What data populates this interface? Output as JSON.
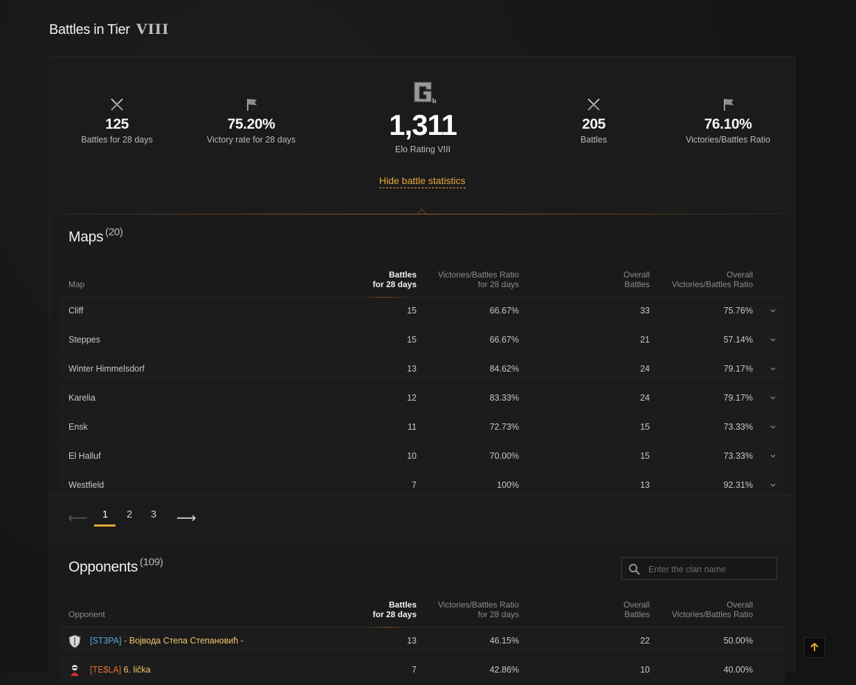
{
  "page": {
    "title": "Battles in Tier",
    "tier": "VIII"
  },
  "stats": {
    "battles28": {
      "value": "125",
      "label": "Battles for 28 days"
    },
    "victory28": {
      "value": "75.20%",
      "label": "Victory rate for 28 days"
    },
    "elo": {
      "value": "1,311",
      "label": "Elo Rating VIII"
    },
    "battles": {
      "value": "205",
      "label": "Battles"
    },
    "ratio": {
      "value": "76.10%",
      "label": "Victories/Battles Ratio"
    },
    "hide_link": "Hide battle statistics"
  },
  "maps": {
    "title": "Maps",
    "count": "(20)",
    "headers": {
      "name": "Map",
      "battles28_l1": "Battles",
      "battles28_l2": "for 28 days",
      "ratio28_l1": "Victories/Battles Ratio",
      "ratio28_l2": "for 28 days",
      "overall_l1": "Overall",
      "overall_l2": "Battles",
      "overallratio_l1": "Overall",
      "overallratio_l2": "Victories/Battles Ratio"
    },
    "rows": [
      {
        "name": "Cliff",
        "battles28": "15",
        "ratio28": "66.67%",
        "battles": "33",
        "ratio": "75.76%"
      },
      {
        "name": "Steppes",
        "battles28": "15",
        "ratio28": "66.67%",
        "battles": "21",
        "ratio": "57.14%"
      },
      {
        "name": "Winter Himmelsdorf",
        "battles28": "13",
        "ratio28": "84.62%",
        "battles": "24",
        "ratio": "79.17%"
      },
      {
        "name": "Karelia",
        "battles28": "12",
        "ratio28": "83.33%",
        "battles": "24",
        "ratio": "79.17%"
      },
      {
        "name": "Ensk",
        "battles28": "11",
        "ratio28": "72.73%",
        "battles": "15",
        "ratio": "73.33%"
      },
      {
        "name": "El Halluf",
        "battles28": "10",
        "ratio28": "70.00%",
        "battles": "15",
        "ratio": "73.33%"
      },
      {
        "name": "Westfield",
        "battles28": "7",
        "ratio28": "100%",
        "battles": "13",
        "ratio": "92.31%"
      }
    ]
  },
  "pager": {
    "prev": "⟵",
    "next": "⟶",
    "pages": [
      "1",
      "2",
      "3"
    ],
    "active": "1"
  },
  "opponents": {
    "title": "Opponents",
    "count": "(109)",
    "search_placeholder": "Enter the clan name",
    "headers": {
      "name": "Opponent",
      "battles28_l1": "Battles",
      "battles28_l2": "for 28 days",
      "ratio28_l1": "Victories/Battles Ratio",
      "ratio28_l2": "for 28 days",
      "overall_l1": "Overall",
      "overall_l2": "Battles",
      "overallratio_l1": "Overall",
      "overallratio_l2": "Victories/Battles Ratio"
    },
    "rows": [
      {
        "tag": "[ST3PA]",
        "sep": " - ",
        "name": "Војвода Степа Степановић",
        "suffix": " -",
        "battles28": "13",
        "ratio28": "46.15%",
        "battles": "22",
        "ratio": "50.00%"
      },
      {
        "tag": "[TE$LA]",
        "sep": " ",
        "name": "6. lička",
        "suffix": "",
        "battles28": "7",
        "ratio28": "42.86%",
        "battles": "10",
        "ratio": "40.00%"
      }
    ]
  },
  "icons": {
    "battles": "crossed-swords-icon",
    "victory": "flag-icon",
    "elo": "g-emblem-icon",
    "expand": "chevron-down-icon",
    "search": "search-icon",
    "top": "arrow-up-icon"
  },
  "colors": {
    "accent": "#e8a93a",
    "tag_blue": "#58a9d6",
    "tag_orange": "#e26b2c",
    "player_name": "#f0c86e"
  }
}
